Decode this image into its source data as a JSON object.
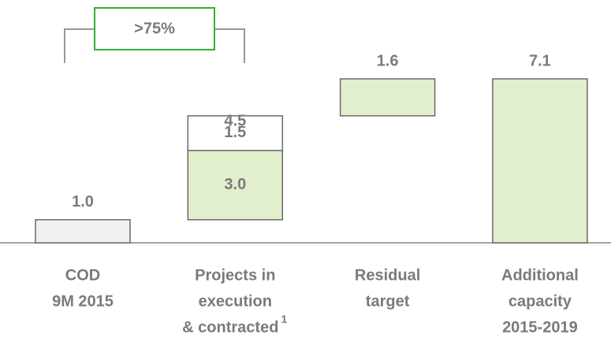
{
  "chart_data": {
    "type": "waterfall",
    "categories": [
      [
        "COD",
        "9M 2015"
      ],
      [
        "Projects in",
        "execution",
        "& contracted"
      ],
      [
        "Residual",
        "target"
      ],
      [
        "Additional",
        "capacity",
        "2015-2019"
      ]
    ],
    "category_footnote": {
      "category": 1,
      "text": "1"
    },
    "segments": [
      {
        "category": 0,
        "value": 1.0,
        "label": "1.0",
        "color": "#f0f0f0",
        "label_position": "above"
      },
      {
        "category": 1,
        "value": 3.0,
        "label": "3.0",
        "color": "#e2efcd",
        "label_position": "inside"
      },
      {
        "category": 1,
        "value": 1.5,
        "label": "1.5",
        "color": "#ffffff",
        "label_position": "inside"
      },
      {
        "category": 2,
        "value": 1.6,
        "label": "1.6",
        "color": "#e2efcd",
        "label_position": "above"
      },
      {
        "category": 3,
        "value": 7.1,
        "label": "7.1",
        "color": "#e2efcd",
        "label_position": "above",
        "total": true
      }
    ],
    "subtotal": {
      "category": 1,
      "value": 4.5,
      "label": "4.5"
    },
    "annotation": ">75%",
    "annotation_color": "#3aaa35",
    "ylim": [
      0,
      8.5
    ]
  }
}
